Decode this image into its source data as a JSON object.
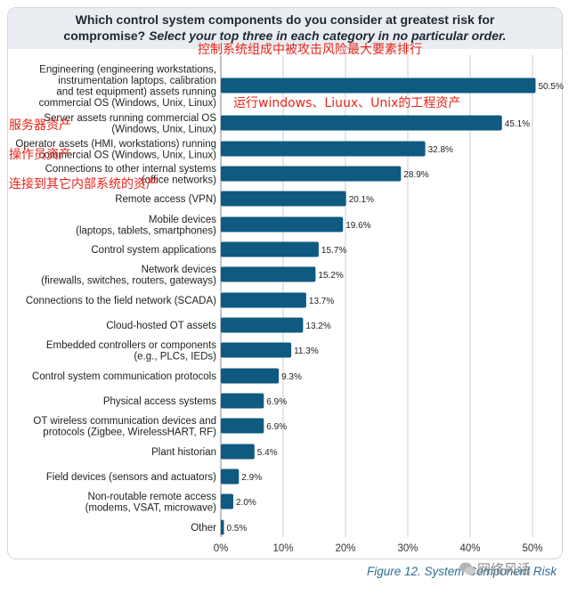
{
  "title_line1": "Which control system components do you consider at greatest risk for",
  "title_line2_bold": "compromise? ",
  "title_line2_italic": "Select your top three in each category in no particular order.",
  "annotations": {
    "title_cn": "控制系统组成中被攻击风险最大要素排行",
    "windows_assets_cn": "运行windows、Liuux、Unix的工程资产",
    "server_assets_cn": "服务器资产",
    "operator_assets_cn": "操作员资产",
    "connections_cn": "连接到其它内部系统的资产"
  },
  "caption": "Figure 12. System Component Risk",
  "watermark": "网络风话",
  "chart_data": {
    "type": "bar",
    "orientation": "horizontal",
    "categories": [
      [
        "Engineering (engineering workstations,",
        "instrumentation laptops, calibration",
        "and test equipment) assets running",
        "commercial OS (Windows, Unix, Linux)"
      ],
      [
        "Server assets running commercial OS",
        "(Windows, Unix, Linux)"
      ],
      [
        "Operator assets (HMI, workstations) running",
        "commercial OS (Windows, Unix, Linux)"
      ],
      [
        "Connections to other internal systems",
        "(office networks)"
      ],
      [
        "Remote access (VPN)"
      ],
      [
        "Mobile devices",
        "(laptops, tablets, smartphones)"
      ],
      [
        "Control system applications"
      ],
      [
        "Network devices",
        "(firewalls, switches, routers, gateways)"
      ],
      [
        "Connections to the field network (SCADA)"
      ],
      [
        "Cloud-hosted OT assets"
      ],
      [
        "Embedded controllers or components",
        "(e.g., PLCs, IEDs)"
      ],
      [
        "Control system communication protocols"
      ],
      [
        "Physical access systems"
      ],
      [
        "OT wireless communication devices and",
        "protocols (Zigbee, WirelessHART, RF)"
      ],
      [
        "Plant historian"
      ],
      [
        "Field devices (sensors and actuators)"
      ],
      [
        "Non-routable remote access",
        "(modems, VSAT, microwave)"
      ],
      [
        "Other"
      ]
    ],
    "values": [
      50.5,
      45.1,
      32.8,
      28.9,
      20.1,
      19.6,
      15.7,
      15.2,
      13.7,
      13.2,
      11.3,
      9.3,
      6.9,
      6.9,
      5.4,
      2.9,
      2.0,
      0.5
    ],
    "value_labels": [
      "50.5%",
      "45.1%",
      "32.8%",
      "28.9%",
      "20.1%",
      "19.6%",
      "15.7%",
      "15.2%",
      "13.7%",
      "13.2%",
      "11.3%",
      "9.3%",
      "6.9%",
      "6.9%",
      "5.4%",
      "2.9%",
      "2.0%",
      "0.5%"
    ],
    "xlim": [
      0,
      50
    ],
    "xticks": [
      "0%",
      "10%",
      "20%",
      "30%",
      "40%",
      "50%"
    ],
    "grid": "vertical",
    "bar_color": "#0f5a80",
    "grid_color": "#c8cfd6"
  }
}
